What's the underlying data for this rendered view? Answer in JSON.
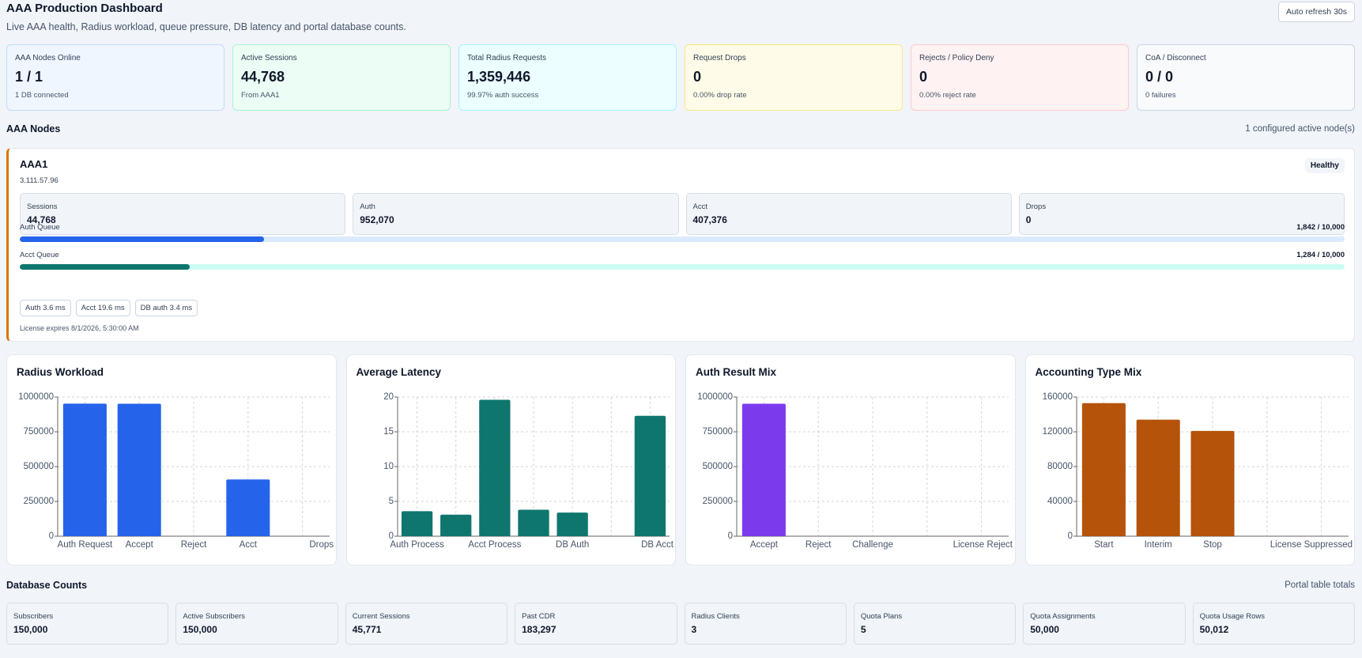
{
  "header": {
    "title": "AAA Production Dashboard",
    "subtitle": "Live AAA health, Radius workload, queue pressure, DB latency and portal database counts.",
    "refresh": "Auto refresh 30s"
  },
  "stats": [
    {
      "label": "AAA Nodes Online",
      "value": "1 / 1",
      "note": "1 DB connected"
    },
    {
      "label": "Active Sessions",
      "value": "44,768",
      "note": "From AAA1"
    },
    {
      "label": "Total Radius Requests",
      "value": "1,359,446",
      "note": "99.97% auth success"
    },
    {
      "label": "Request Drops",
      "value": "0",
      "note": "0.00% drop rate"
    },
    {
      "label": "Rejects / Policy Deny",
      "value": "0",
      "note": "0.00% reject rate"
    },
    {
      "label": "CoA / Disconnect",
      "value": "0 / 0",
      "note": "0 failures"
    }
  ],
  "nodes_section": {
    "title": "AAA Nodes",
    "summary": "1 configured active node(s)"
  },
  "node": {
    "name": "AAA1",
    "ip": "3.111.57.96",
    "status": "Healthy",
    "metrics": [
      {
        "label": "Sessions",
        "value": "44,768"
      },
      {
        "label": "Auth",
        "value": "952,070"
      },
      {
        "label": "Acct",
        "value": "407,376"
      },
      {
        "label": "Drops",
        "value": "0"
      }
    ],
    "queues": [
      {
        "name": "Auth Queue",
        "label": "1,842 / 10,000",
        "used": 1842,
        "capacity": 10000,
        "color": "#2563eb",
        "track": "#dbeafe"
      },
      {
        "name": "Acct Queue",
        "label": "1,284 / 10,000",
        "used": 1284,
        "capacity": 10000,
        "color": "#0f766e",
        "track": "#ccfbf1"
      }
    ],
    "latency_pills": [
      "Auth 3.6 ms",
      "Acct 19.6 ms",
      "DB auth 3.4 ms"
    ],
    "license": "License expires 8/1/2026, 5:30:00 AM"
  },
  "chart_data": [
    {
      "type": "bar",
      "title": "Radius Workload",
      "categories": [
        "Auth Request",
        "Accept",
        "Reject",
        "Acct",
        "Drops"
      ],
      "values": [
        952070,
        951784,
        0,
        407376,
        0
      ],
      "color": "#2563eb",
      "ylim": [
        0,
        1000000
      ],
      "yticks": [
        0,
        250000,
        500000,
        750000,
        1000000
      ],
      "grid": true
    },
    {
      "type": "bar",
      "title": "Average Latency",
      "categories": [
        "Auth Process",
        null,
        "Acct Process",
        null,
        "DB Auth",
        null,
        "DB Acct"
      ],
      "values": [
        3.6,
        3.1,
        19.6,
        3.8,
        3.4,
        0,
        17.3
      ],
      "color": "#0f766e",
      "ylim": [
        0,
        20
      ],
      "yticks": [
        0,
        5,
        10,
        15,
        20
      ],
      "grid": true
    },
    {
      "type": "bar",
      "title": "Auth Result Mix",
      "categories": [
        "Accept",
        "Reject",
        "Challenge",
        null,
        "License Reject"
      ],
      "values": [
        951784,
        0,
        0,
        0,
        0
      ],
      "color": "#7c3aed",
      "ylim": [
        0,
        1000000
      ],
      "yticks": [
        0,
        250000,
        500000,
        750000,
        1000000
      ],
      "grid": true
    },
    {
      "type": "bar",
      "title": "Accounting Type Mix",
      "categories": [
        "Start",
        "Interim",
        "Stop",
        null,
        "License Suppressed"
      ],
      "values": [
        153000,
        134000,
        121000,
        0,
        0
      ],
      "color": "#b45309",
      "ylim": [
        0,
        160000
      ],
      "yticks": [
        0,
        40000,
        80000,
        120000,
        160000
      ],
      "grid": true
    }
  ],
  "db_section": {
    "title": "Database Counts",
    "summary": "Portal table totals"
  },
  "db_counts": [
    {
      "label": "Subscribers",
      "value": "150,000"
    },
    {
      "label": "Active Subscribers",
      "value": "150,000"
    },
    {
      "label": "Current Sessions",
      "value": "45,771"
    },
    {
      "label": "Past CDR",
      "value": "183,297"
    },
    {
      "label": "Radius Clients",
      "value": "3"
    },
    {
      "label": "Quota Plans",
      "value": "5"
    },
    {
      "label": "Quota Assignments",
      "value": "50,000"
    },
    {
      "label": "Quota Usage Rows",
      "value": "50,012"
    }
  ]
}
